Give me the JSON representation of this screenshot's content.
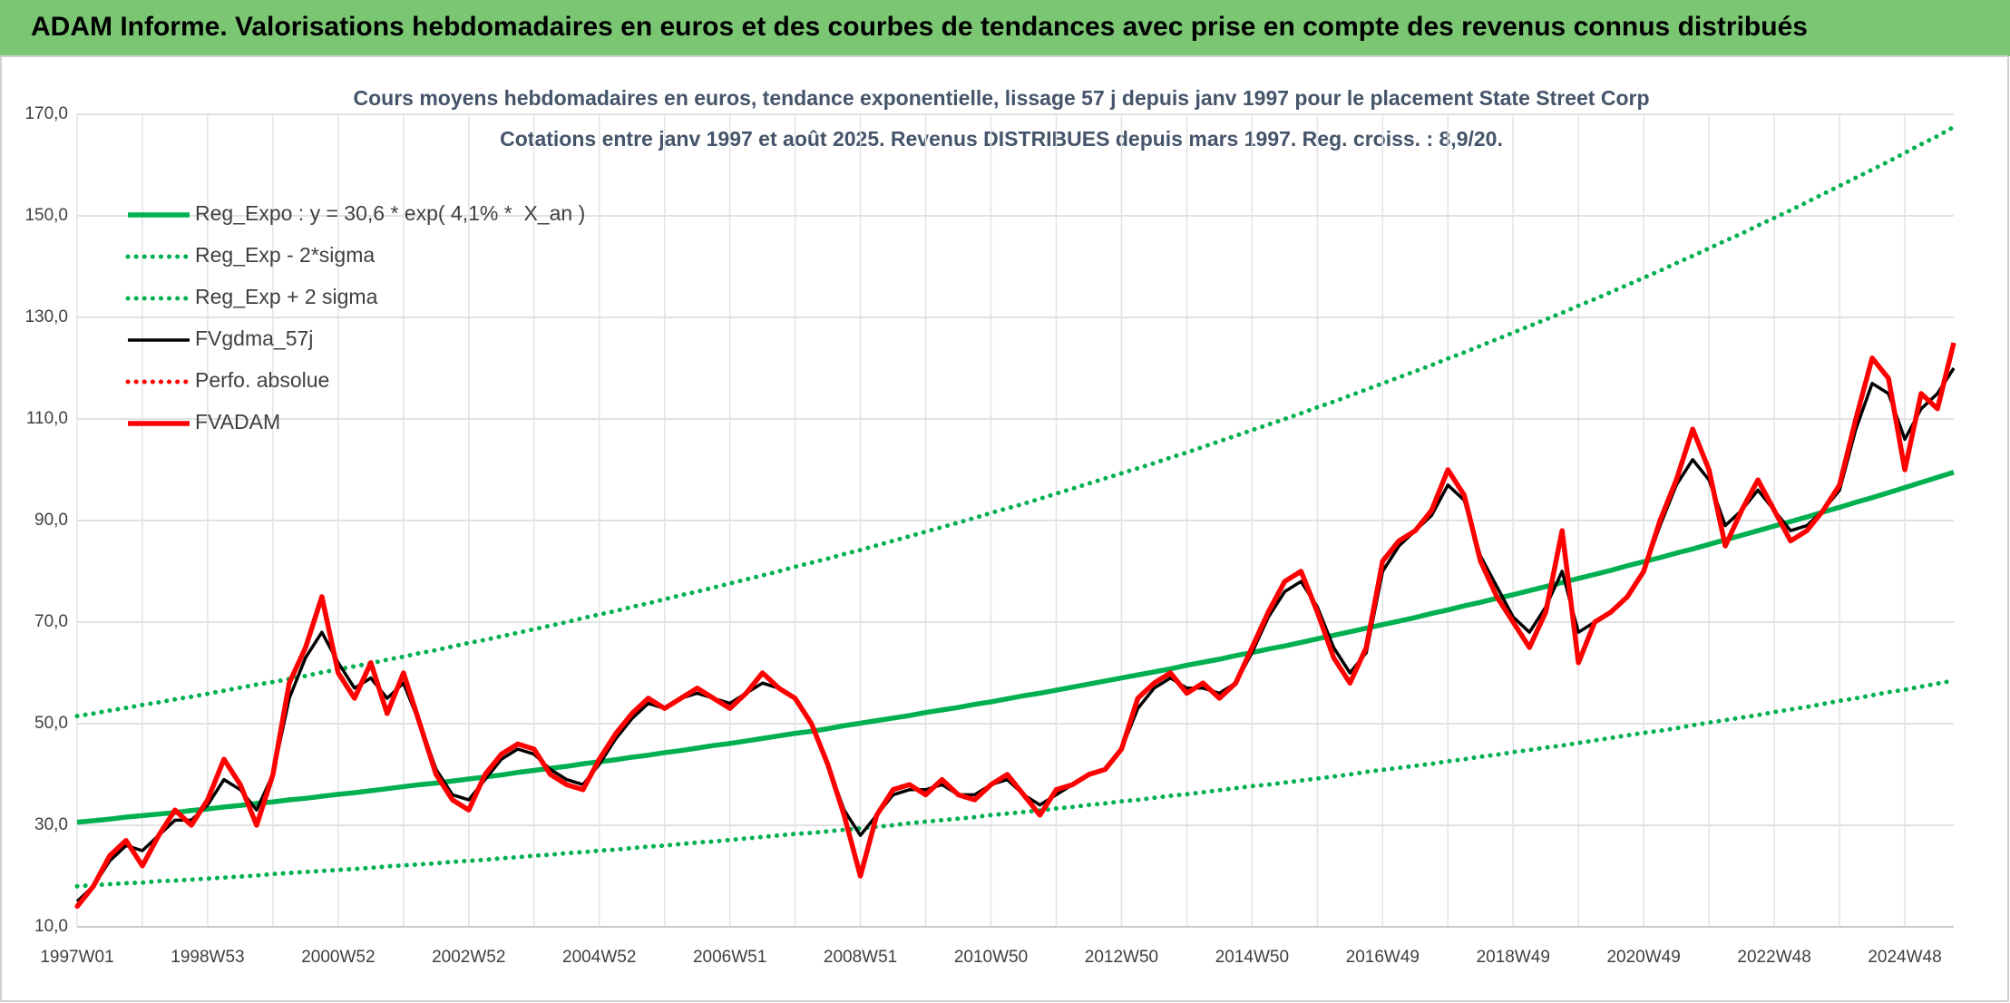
{
  "header": {
    "title": "ADAM Informe. Valorisations hebdomadaires en euros et des courbes de tendances avec prise en compte des revenus connus distribués"
  },
  "chart_data": {
    "type": "line",
    "title": "Cours moyens hebdomadaires en euros, tendance exponentielle, lissage 57 j depuis janv 1997 pour le placement State Street Corp",
    "subtitle": "Cotations entre janv 1997 et août 2025. Revenus DISTRIBUES depuis mars 1997. Reg. croiss. : 8,9/20.",
    "categories": [
      "1997W01",
      null,
      null,
      null,
      null,
      null,
      null,
      null,
      "1998W53",
      null,
      null,
      null,
      null,
      null,
      null,
      null,
      "2000W52",
      null,
      null,
      null,
      null,
      null,
      null,
      null,
      "2002W52",
      null,
      null,
      null,
      null,
      null,
      null,
      null,
      "2004W52",
      null,
      null,
      null,
      null,
      null,
      null,
      null,
      "2006W51",
      null,
      null,
      null,
      null,
      null,
      null,
      null,
      "2008W51",
      null,
      null,
      null,
      null,
      null,
      null,
      null,
      "2010W50",
      null,
      null,
      null,
      null,
      null,
      null,
      null,
      "2012W50",
      null,
      null,
      null,
      null,
      null,
      null,
      null,
      "2014W50",
      null,
      null,
      null,
      null,
      null,
      null,
      null,
      "2016W49",
      null,
      null,
      null,
      null,
      null,
      null,
      null,
      "2018W49",
      null,
      null,
      null,
      null,
      null,
      null,
      null,
      "2020W49",
      null,
      null,
      null,
      null,
      null,
      null,
      null,
      "2022W48",
      null,
      null,
      null,
      null,
      null,
      null,
      null,
      "2024W48",
      null,
      null,
      null
    ],
    "ylim": [
      10,
      170
    ],
    "yticks": [
      {
        "value": 10,
        "label": "10,0"
      },
      {
        "value": 30,
        "label": "30,0"
      },
      {
        "value": 50,
        "label": "50,0"
      },
      {
        "value": 70,
        "label": "70,0"
      },
      {
        "value": 90,
        "label": "90,0"
      },
      {
        "value": 110,
        "label": "110,0"
      },
      {
        "value": 130,
        "label": "130,0"
      },
      {
        "value": 150,
        "label": "150,0"
      },
      {
        "value": 170,
        "label": "170,0"
      }
    ],
    "grid": true,
    "legend": "upper-left",
    "series": [
      {
        "name": "Reg_Expo : y = 30,6 * exp( 4,1% *  X_an )",
        "color": "#00b050",
        "dash": "solid",
        "values": [
          30.6,
          30.9,
          31.2,
          31.6,
          31.9,
          32.2,
          32.5,
          32.9,
          33.2,
          33.6,
          33.9,
          34.3,
          34.6,
          35.0,
          35.3,
          35.7,
          36.1,
          36.4,
          36.8,
          37.2,
          37.6,
          38.0,
          38.3,
          38.7,
          39.1,
          39.5,
          39.9,
          40.4,
          40.8,
          41.2,
          41.6,
          42.1,
          42.5,
          42.9,
          43.4,
          43.8,
          44.3,
          44.7,
          45.2,
          45.7,
          46.1,
          46.6,
          47.1,
          47.6,
          48.1,
          48.5,
          49.0,
          49.6,
          50.1,
          50.6,
          51.1,
          51.6,
          52.2,
          52.7,
          53.2,
          53.8,
          54.3,
          54.9,
          55.5,
          56.0,
          56.6,
          57.2,
          57.8,
          58.4,
          59.0,
          59.6,
          60.2,
          60.8,
          61.5,
          62.1,
          62.7,
          63.4,
          64.0,
          64.7,
          65.3,
          66.0,
          66.7,
          67.4,
          68.1,
          68.8,
          69.5,
          70.2,
          70.9,
          71.7,
          72.4,
          73.2,
          73.9,
          74.7,
          75.4,
          76.2,
          77.0,
          77.8,
          78.6,
          79.4,
          80.2,
          81.1,
          81.9,
          82.7,
          83.6,
          84.4,
          85.3,
          86.2,
          87.1,
          88.0,
          88.9,
          89.8,
          90.7,
          91.7,
          92.6,
          93.6,
          94.5,
          95.5,
          96.5,
          97.5,
          98.5,
          99.5
        ]
      },
      {
        "name": "Reg_Exp - 2*sigma",
        "color": "#00b050",
        "dash": "dotted",
        "values": [
          18.0,
          18.2,
          18.4,
          18.6,
          18.7,
          19.0,
          19.1,
          19.3,
          19.5,
          19.7,
          19.9,
          20.1,
          20.4,
          20.6,
          20.8,
          21.0,
          21.2,
          21.4,
          21.6,
          21.9,
          22.1,
          22.3,
          22.5,
          22.8,
          23.0,
          23.2,
          23.5,
          23.7,
          24.0,
          24.2,
          24.5,
          24.7,
          25.0,
          25.2,
          25.5,
          25.8,
          26.0,
          26.3,
          26.6,
          26.8,
          27.1,
          27.4,
          27.7,
          28.0,
          28.3,
          28.5,
          28.8,
          29.1,
          29.4,
          29.7,
          30.0,
          30.4,
          30.7,
          31.0,
          31.3,
          31.6,
          32.0,
          32.3,
          32.6,
          32.9,
          33.3,
          33.6,
          34.0,
          34.3,
          34.7,
          35.0,
          35.4,
          35.8,
          36.1,
          36.5,
          36.9,
          37.3,
          37.7,
          38.0,
          38.4,
          38.8,
          39.2,
          39.6,
          40.0,
          40.5,
          40.9,
          41.3,
          41.7,
          42.1,
          42.6,
          43.0,
          43.5,
          43.9,
          44.4,
          44.8,
          45.3,
          45.7,
          46.2,
          46.7,
          47.2,
          47.7,
          48.2,
          48.6,
          49.1,
          49.7,
          50.2,
          50.7,
          51.2,
          51.7,
          52.3,
          52.8,
          53.3,
          53.9,
          54.5,
          55.0,
          55.6,
          56.2,
          56.7,
          57.3,
          57.9,
          58.5
        ]
      },
      {
        "name": "Reg_Exp + 2 sigma",
        "color": "#00b050",
        "dash": "dotted",
        "values": [
          51.5,
          52.0,
          52.6,
          53.1,
          53.7,
          54.2,
          54.8,
          55.3,
          55.9,
          56.5,
          57.1,
          57.7,
          58.2,
          58.8,
          59.4,
          60.1,
          60.7,
          61.3,
          61.9,
          62.6,
          63.2,
          63.9,
          64.5,
          65.2,
          65.9,
          66.5,
          67.2,
          67.9,
          68.6,
          69.3,
          70.0,
          70.8,
          71.5,
          72.2,
          73.0,
          73.7,
          74.5,
          75.3,
          76.0,
          76.8,
          77.6,
          78.4,
          79.2,
          80.0,
          80.9,
          81.7,
          82.5,
          83.4,
          84.2,
          85.1,
          86.0,
          86.9,
          87.8,
          88.7,
          89.6,
          90.5,
          91.5,
          92.4,
          93.3,
          94.3,
          95.3,
          96.3,
          97.3,
          98.3,
          99.3,
          100.3,
          101.3,
          102.4,
          103.4,
          104.5,
          105.6,
          106.7,
          107.8,
          108.9,
          110.0,
          111.1,
          112.3,
          113.4,
          114.6,
          115.8,
          117.0,
          118.2,
          119.4,
          120.6,
          121.9,
          123.1,
          124.4,
          125.7,
          127.0,
          128.3,
          129.6,
          130.9,
          132.3,
          133.6,
          135.0,
          136.4,
          137.8,
          139.2,
          140.7,
          142.1,
          143.6,
          145.1,
          146.5,
          148.1,
          149.6,
          151.1,
          152.7,
          154.3,
          155.9,
          157.5,
          159.1,
          160.7,
          162.4,
          164.1,
          165.7,
          167.5
        ]
      },
      {
        "name": "FVgdma_57j",
        "color": "#000000",
        "dash": "solid",
        "values": [
          15,
          18,
          23,
          26,
          25,
          28,
          31,
          31,
          34,
          39,
          37,
          33,
          40,
          55,
          63,
          68,
          62,
          57,
          59,
          55,
          58,
          50,
          41,
          36,
          35,
          39,
          43,
          45,
          44,
          41,
          39,
          38,
          42,
          47,
          51,
          54,
          53,
          55,
          56,
          55,
          54,
          56,
          58,
          57,
          55,
          50,
          42,
          33,
          28,
          32,
          36,
          37,
          37,
          38,
          36,
          36,
          38,
          39,
          36,
          34,
          36,
          38,
          40,
          41,
          45,
          53,
          57,
          59,
          57,
          57,
          56,
          58,
          64,
          71,
          76,
          78,
          73,
          65,
          60,
          64,
          80,
          85,
          88,
          91,
          97,
          94,
          83,
          77,
          71,
          68,
          73,
          80,
          68,
          70,
          72,
          75,
          80,
          89,
          97,
          102,
          98,
          89,
          92,
          96,
          92,
          88,
          89,
          92,
          96,
          108,
          117,
          115,
          106,
          112,
          115,
          120
        ]
      },
      {
        "name": "Perfo. absolue",
        "color": "#ff0000",
        "dash": "dotted",
        "values": [
          14,
          18,
          24,
          27,
          22,
          28,
          33,
          30,
          35,
          43,
          38,
          30,
          40,
          58,
          65,
          75,
          60,
          55,
          62,
          52,
          60,
          50,
          40,
          35,
          33,
          40,
          44,
          46,
          45,
          40,
          38,
          37,
          43,
          48,
          52,
          55,
          53,
          55,
          57,
          55,
          53,
          56,
          60,
          57,
          55,
          50,
          42,
          32,
          20,
          32,
          37,
          38,
          36,
          39,
          36,
          35,
          38,
          40,
          36,
          32,
          37,
          38,
          40,
          41,
          45,
          55,
          58,
          60,
          56,
          58,
          55,
          58,
          65,
          72,
          78,
          80,
          72,
          63,
          58,
          65,
          82,
          86,
          88,
          92,
          100,
          95,
          82,
          75,
          70,
          65,
          72,
          88,
          62,
          70,
          72,
          75,
          80,
          90,
          98,
          108,
          100,
          85,
          92,
          98,
          92,
          86,
          88,
          92,
          97,
          110,
          122,
          118,
          100,
          115,
          112,
          125
        ]
      },
      {
        "name": "FVADAM",
        "color": "#ff0000",
        "dash": "solid",
        "values": [
          14,
          18,
          24,
          27,
          22,
          28,
          33,
          30,
          35,
          43,
          38,
          30,
          40,
          58,
          65,
          75,
          60,
          55,
          62,
          52,
          60,
          50,
          40,
          35,
          33,
          40,
          44,
          46,
          45,
          40,
          38,
          37,
          43,
          48,
          52,
          55,
          53,
          55,
          57,
          55,
          53,
          56,
          60,
          57,
          55,
          50,
          42,
          32,
          20,
          32,
          37,
          38,
          36,
          39,
          36,
          35,
          38,
          40,
          36,
          32,
          37,
          38,
          40,
          41,
          45,
          55,
          58,
          60,
          56,
          58,
          55,
          58,
          65,
          72,
          78,
          80,
          72,
          63,
          58,
          65,
          82,
          86,
          88,
          92,
          100,
          95,
          82,
          75,
          70,
          65,
          72,
          88,
          62,
          70,
          72,
          75,
          80,
          90,
          98,
          108,
          100,
          85,
          92,
          98,
          92,
          86,
          88,
          92,
          97,
          110,
          122,
          118,
          100,
          115,
          112,
          125
        ]
      }
    ]
  }
}
